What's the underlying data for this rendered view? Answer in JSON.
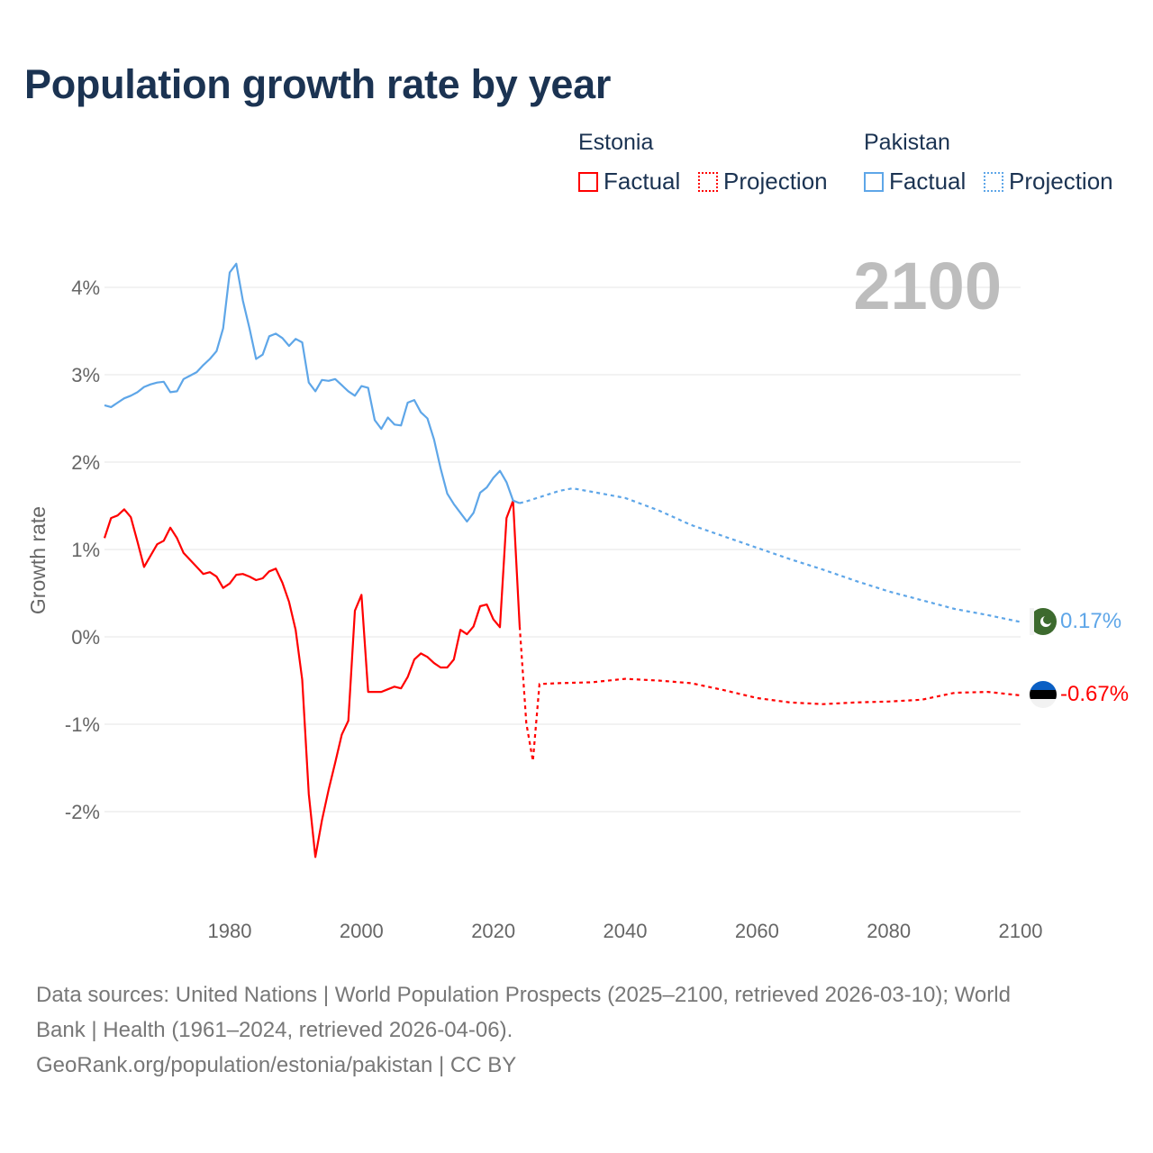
{
  "title": "Population growth rate by year",
  "legend": {
    "groups": [
      {
        "name": "Estonia",
        "factual": "Factual",
        "projection": "Projection",
        "color": "#ff0000"
      },
      {
        "name": "Pakistan",
        "factual": "Factual",
        "projection": "Projection",
        "color": "#5ea6e8"
      }
    ]
  },
  "chart_data": {
    "type": "line",
    "title": "Population growth rate by year",
    "xlabel": "",
    "ylabel": "Growth rate",
    "xlim": [
      1961,
      2100
    ],
    "ylim": [
      -3,
      4.5
    ],
    "x_ticks": [
      {
        "value": 1980,
        "label": "1980"
      },
      {
        "value": 2000,
        "label": "2000"
      },
      {
        "value": 2020,
        "label": "2020"
      },
      {
        "value": 2040,
        "label": "2040"
      },
      {
        "value": 2060,
        "label": "2060"
      },
      {
        "value": 2080,
        "label": "2080"
      },
      {
        "value": 2100,
        "label": "2100"
      }
    ],
    "y_ticks": [
      {
        "value": 4,
        "label": "4%"
      },
      {
        "value": 3,
        "label": "3%"
      },
      {
        "value": 2,
        "label": "2%"
      },
      {
        "value": 1,
        "label": "1%"
      },
      {
        "value": 0,
        "label": "0%"
      },
      {
        "value": -1,
        "label": "-1%"
      },
      {
        "value": -2,
        "label": "-2%"
      }
    ],
    "grid": true,
    "year_label": "2100",
    "series": [
      {
        "name": "Estonia",
        "color": "#ff0000",
        "factual_start_year": 1961,
        "factual": [
          1.13,
          1.36,
          1.39,
          1.46,
          1.37,
          1.09,
          0.8,
          0.93,
          1.06,
          1.1,
          1.25,
          1.13,
          0.96,
          0.88,
          0.8,
          0.72,
          0.74,
          0.69,
          0.56,
          0.61,
          0.71,
          0.72,
          0.69,
          0.65,
          0.67,
          0.75,
          0.78,
          0.62,
          0.4,
          0.08,
          -0.49,
          -1.8,
          -2.52,
          -2.1,
          -1.75,
          -1.44,
          -1.12,
          -0.96,
          0.3,
          0.48,
          -0.63,
          -0.63,
          -0.63,
          -0.6,
          -0.57,
          -0.59,
          -0.46,
          -0.26,
          -0.19,
          -0.23,
          -0.3,
          -0.35,
          -0.35,
          -0.26,
          0.08,
          0.03,
          0.12,
          0.35,
          0.37,
          0.2,
          0.11,
          1.36,
          1.56,
          0.12
        ],
        "projection": [
          [
            2024,
            0.12
          ],
          [
            2025,
            -0.99
          ],
          [
            2026,
            -1.42
          ],
          [
            2027,
            -0.54
          ],
          [
            2030,
            -0.53
          ],
          [
            2035,
            -0.52
          ],
          [
            2040,
            -0.48
          ],
          [
            2045,
            -0.5
          ],
          [
            2050,
            -0.53
          ],
          [
            2055,
            -0.61
          ],
          [
            2060,
            -0.7
          ],
          [
            2065,
            -0.75
          ],
          [
            2070,
            -0.77
          ],
          [
            2075,
            -0.75
          ],
          [
            2080,
            -0.74
          ],
          [
            2085,
            -0.72
          ],
          [
            2090,
            -0.64
          ],
          [
            2095,
            -0.63
          ],
          [
            2100,
            -0.67
          ]
        ],
        "end_label": "-0.67%"
      },
      {
        "name": "Pakistan",
        "color": "#5ea6e8",
        "factual_start_year": 1961,
        "factual": [
          2.65,
          2.63,
          2.68,
          2.73,
          2.76,
          2.8,
          2.86,
          2.89,
          2.91,
          2.92,
          2.8,
          2.81,
          2.95,
          2.99,
          3.03,
          3.11,
          3.18,
          3.27,
          3.53,
          4.17,
          4.27,
          3.85,
          3.53,
          3.18,
          3.23,
          3.44,
          3.47,
          3.42,
          3.33,
          3.41,
          3.37,
          2.91,
          2.81,
          2.94,
          2.93,
          2.95,
          2.88,
          2.81,
          2.76,
          2.87,
          2.85,
          2.48,
          2.38,
          2.51,
          2.43,
          2.42,
          2.68,
          2.71,
          2.57,
          2.5,
          2.26,
          1.93,
          1.64,
          1.52,
          1.42,
          1.32,
          1.42,
          1.65,
          1.71,
          1.82,
          1.9,
          1.77,
          1.56,
          1.53
        ],
        "projection": [
          [
            2024,
            1.53
          ],
          [
            2025,
            1.55
          ],
          [
            2030,
            1.67
          ],
          [
            2032,
            1.7
          ],
          [
            2035,
            1.66
          ],
          [
            2040,
            1.59
          ],
          [
            2045,
            1.45
          ],
          [
            2050,
            1.28
          ],
          [
            2055,
            1.15
          ],
          [
            2060,
            1.02
          ],
          [
            2065,
            0.89
          ],
          [
            2070,
            0.77
          ],
          [
            2075,
            0.64
          ],
          [
            2080,
            0.52
          ],
          [
            2085,
            0.42
          ],
          [
            2090,
            0.32
          ],
          [
            2095,
            0.25
          ],
          [
            2100,
            0.17
          ]
        ],
        "end_label": "0.17%"
      }
    ]
  },
  "footer": {
    "line1": "Data sources: United Nations | World Population Prospects (2025–2100, retrieved 2026-03-10); World",
    "line2": "Bank | Health (1961–2024, retrieved 2026-04-06).",
    "line3": "GeoRank.org/population/estonia/pakistan | CC BY"
  }
}
